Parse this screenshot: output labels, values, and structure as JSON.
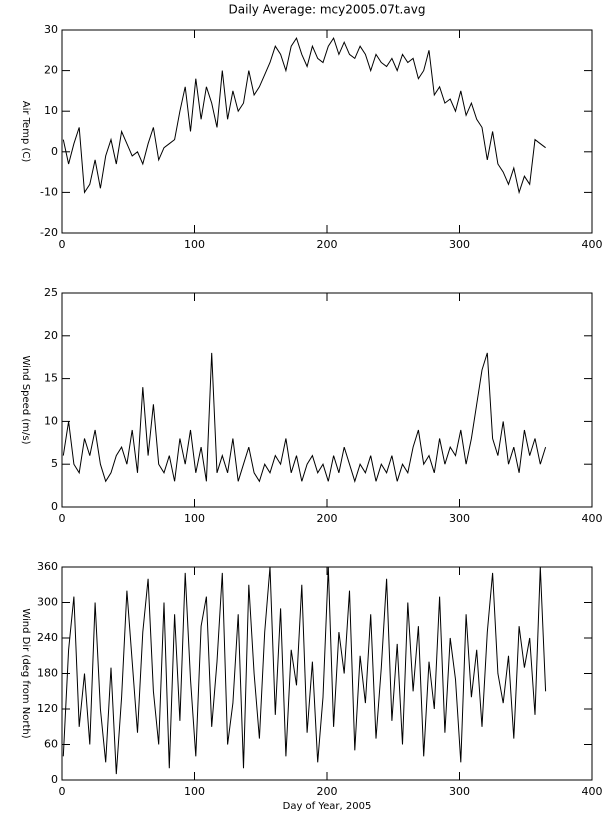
{
  "chart_data": [
    {
      "type": "line",
      "title": "Daily Average: mcy2005.07t.avg",
      "ylabel": "Air Temp (C)",
      "color": "#000000",
      "x": [
        1,
        5,
        9,
        13,
        17,
        21,
        25,
        29,
        33,
        37,
        41,
        45,
        49,
        53,
        57,
        61,
        65,
        69,
        73,
        77,
        81,
        85,
        89,
        93,
        97,
        101,
        105,
        109,
        113,
        117,
        121,
        125,
        129,
        133,
        137,
        141,
        145,
        149,
        153,
        157,
        161,
        165,
        169,
        173,
        177,
        181,
        185,
        189,
        193,
        197,
        201,
        205,
        209,
        213,
        217,
        221,
        225,
        229,
        233,
        237,
        241,
        245,
        249,
        253,
        257,
        261,
        265,
        269,
        273,
        277,
        281,
        285,
        289,
        293,
        297,
        301,
        305,
        309,
        313,
        317,
        321,
        325,
        329,
        333,
        337,
        341,
        345,
        349,
        353,
        357,
        361,
        365
      ],
      "values": [
        3,
        -3,
        2,
        6,
        -10,
        -8,
        -2,
        -9,
        -1,
        3,
        -3,
        5,
        2,
        -1,
        0,
        -3,
        2,
        6,
        -2,
        1,
        2,
        3,
        10,
        16,
        5,
        18,
        8,
        16,
        12,
        6,
        20,
        8,
        15,
        10,
        12,
        20,
        14,
        16,
        19,
        22,
        26,
        24,
        20,
        26,
        28,
        24,
        21,
        26,
        23,
        22,
        26,
        28,
        24,
        27,
        24,
        23,
        26,
        24,
        20,
        24,
        22,
        21,
        23,
        20,
        24,
        22,
        23,
        18,
        20,
        25,
        14,
        16,
        12,
        13,
        10,
        15,
        9,
        12,
        8,
        6,
        -2,
        5,
        -3,
        -5,
        -8,
        -4,
        -10,
        -6,
        -8,
        3,
        2,
        1
      ],
      "xlim": [
        0,
        400
      ],
      "xticks": [
        0,
        100,
        200,
        300,
        400
      ],
      "ylim": [
        -20,
        30
      ],
      "yticks": [
        -20,
        -10,
        0,
        10,
        20,
        30
      ]
    },
    {
      "type": "line",
      "ylabel": "Wind Speed (m/s)",
      "color": "#000000",
      "x": [
        1,
        5,
        9,
        13,
        17,
        21,
        25,
        29,
        33,
        37,
        41,
        45,
        49,
        53,
        57,
        61,
        65,
        69,
        73,
        77,
        81,
        85,
        89,
        93,
        97,
        101,
        105,
        109,
        113,
        117,
        121,
        125,
        129,
        133,
        137,
        141,
        145,
        149,
        153,
        157,
        161,
        165,
        169,
        173,
        177,
        181,
        185,
        189,
        193,
        197,
        201,
        205,
        209,
        213,
        217,
        221,
        225,
        229,
        233,
        237,
        241,
        245,
        249,
        253,
        257,
        261,
        265,
        269,
        273,
        277,
        281,
        285,
        289,
        293,
        297,
        301,
        305,
        309,
        313,
        317,
        321,
        325,
        329,
        333,
        337,
        341,
        345,
        349,
        353,
        357,
        361,
        365
      ],
      "values": [
        6,
        10,
        5,
        4,
        8,
        6,
        9,
        5,
        3,
        4,
        6,
        7,
        5,
        9,
        4,
        14,
        6,
        12,
        5,
        4,
        6,
        3,
        8,
        5,
        9,
        4,
        7,
        3,
        18,
        4,
        6,
        4,
        8,
        3,
        5,
        7,
        4,
        3,
        5,
        4,
        6,
        5,
        8,
        4,
        6,
        3,
        5,
        6,
        4,
        5,
        3,
        6,
        4,
        7,
        5,
        3,
        5,
        4,
        6,
        3,
        5,
        4,
        6,
        3,
        5,
        4,
        7,
        9,
        5,
        6,
        4,
        8,
        5,
        7,
        6,
        9,
        5,
        8,
        12,
        16,
        18,
        8,
        6,
        10,
        5,
        7,
        4,
        9,
        6,
        8,
        5,
        7
      ],
      "xlim": [
        0,
        400
      ],
      "xticks": [
        0,
        100,
        200,
        300,
        400
      ],
      "ylim": [
        0,
        25
      ],
      "yticks": [
        0,
        5,
        10,
        15,
        20,
        25
      ]
    },
    {
      "type": "line",
      "ylabel": "Wind Dir (deg from North)",
      "xlabel": "Day of Year, 2005",
      "color": "#000000",
      "x": [
        1,
        5,
        9,
        13,
        17,
        21,
        25,
        29,
        33,
        37,
        41,
        45,
        49,
        53,
        57,
        61,
        65,
        69,
        73,
        77,
        81,
        85,
        89,
        93,
        97,
        101,
        105,
        109,
        113,
        117,
        121,
        125,
        129,
        133,
        137,
        141,
        145,
        149,
        153,
        157,
        161,
        165,
        169,
        173,
        177,
        181,
        185,
        189,
        193,
        197,
        201,
        205,
        209,
        213,
        217,
        221,
        225,
        229,
        233,
        237,
        241,
        245,
        249,
        253,
        257,
        261,
        265,
        269,
        273,
        277,
        281,
        285,
        289,
        293,
        297,
        301,
        305,
        309,
        313,
        317,
        321,
        325,
        329,
        333,
        337,
        341,
        345,
        349,
        353,
        357,
        361,
        365
      ],
      "values": [
        40,
        220,
        310,
        90,
        180,
        60,
        300,
        120,
        30,
        190,
        10,
        140,
        320,
        200,
        80,
        250,
        340,
        150,
        60,
        300,
        20,
        280,
        100,
        350,
        170,
        40,
        260,
        310,
        90,
        200,
        350,
        60,
        130,
        280,
        20,
        330,
        180,
        70,
        250,
        360,
        110,
        290,
        40,
        220,
        160,
        330,
        80,
        200,
        30,
        140,
        360,
        90,
        250,
        180,
        320,
        50,
        210,
        130,
        280,
        70,
        190,
        340,
        100,
        230,
        60,
        300,
        150,
        260,
        40,
        200,
        120,
        310,
        80,
        240,
        170,
        30,
        280,
        140,
        220,
        90,
        250,
        350,
        180,
        130,
        210,
        70,
        260,
        190,
        240,
        110,
        360,
        150
      ],
      "xlim": [
        0,
        400
      ],
      "xticks": [
        0,
        100,
        200,
        300,
        400
      ],
      "ylim": [
        0,
        360
      ],
      "yticks": [
        0,
        60,
        120,
        180,
        240,
        300,
        360
      ]
    }
  ]
}
